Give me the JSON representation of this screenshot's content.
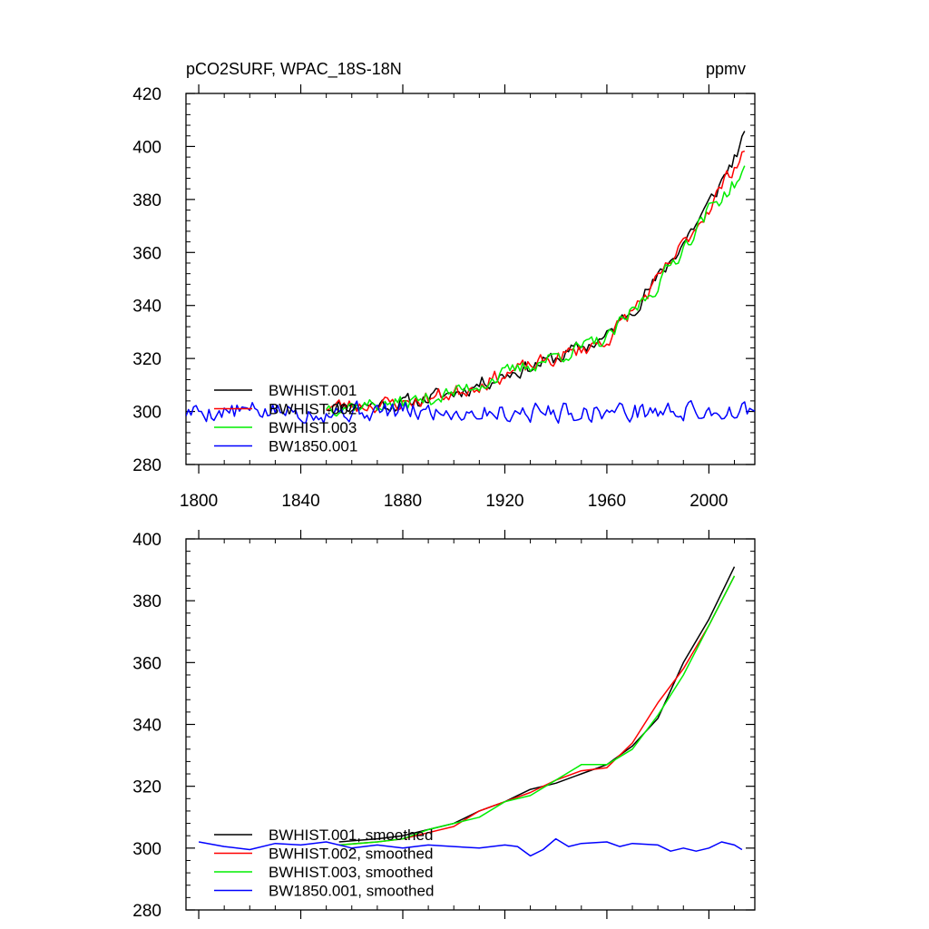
{
  "chart_data": [
    {
      "type": "line",
      "title": "pCO2SURF, WPAC_18S-18N",
      "units": "ppmv",
      "xlabel": "",
      "ylabel": "",
      "xlim": [
        1795,
        2018
      ],
      "ylim": [
        280,
        420
      ],
      "xticks": [
        1800,
        1840,
        1880,
        1920,
        1960,
        2000
      ],
      "yticks": [
        280,
        300,
        320,
        340,
        360,
        380,
        400,
        420
      ],
      "xticklabels": [
        "1800",
        "1840",
        "1880",
        "1920",
        "1960",
        "2000"
      ],
      "yticklabels": [
        "280",
        "300",
        "320",
        "340",
        "360",
        "380",
        "400",
        "420"
      ],
      "legend_position": "bottom-left",
      "series": [
        {
          "name": "BWHIST.001",
          "color": "#000000",
          "kind": "hist",
          "x_start": 1850,
          "x_end": 2014,
          "anchors": [
            [
              1850,
              302
            ],
            [
              1880,
              303
            ],
            [
              1900,
              307
            ],
            [
              1920,
              314
            ],
            [
              1940,
              320
            ],
            [
              1960,
              328
            ],
            [
              1980,
              350
            ],
            [
              2000,
              378
            ],
            [
              2014,
              403
            ]
          ],
          "noise": 2.6,
          "seed": 11
        },
        {
          "name": "BWHIST.002",
          "color": "#ff0000",
          "kind": "hist",
          "x_start": 1850,
          "x_end": 2014,
          "anchors": [
            [
              1850,
              302
            ],
            [
              1880,
              303
            ],
            [
              1900,
              307
            ],
            [
              1920,
              314
            ],
            [
              1940,
              320
            ],
            [
              1960,
              327
            ],
            [
              1980,
              349
            ],
            [
              2000,
              377
            ],
            [
              2014,
              399
            ]
          ],
          "noise": 2.6,
          "seed": 23
        },
        {
          "name": "BWHIST.003",
          "color": "#00ee00",
          "kind": "hist",
          "x_start": 1850,
          "x_end": 2014,
          "anchors": [
            [
              1850,
              302
            ],
            [
              1880,
              303
            ],
            [
              1900,
              307
            ],
            [
              1920,
              314
            ],
            [
              1940,
              321
            ],
            [
              1960,
              327
            ],
            [
              1980,
              348
            ],
            [
              2000,
              376
            ],
            [
              2014,
              390
            ]
          ],
          "noise": 2.6,
          "seed": 37
        },
        {
          "name": "BW1850.001",
          "color": "#0000ff",
          "kind": "control",
          "x_start": 1795,
          "x_end": 2018,
          "anchors": [
            [
              1795,
              300
            ],
            [
              2018,
              300
            ]
          ],
          "noise": 3.3,
          "seed": 5
        }
      ]
    },
    {
      "type": "line",
      "title": "",
      "xlabel": "",
      "ylabel": "",
      "xlim": [
        1795,
        2018
      ],
      "ylim": [
        280,
        400
      ],
      "xticks": [
        1800,
        1840,
        1880,
        1920,
        1960,
        2000
      ],
      "yticks": [
        280,
        300,
        320,
        340,
        360,
        380,
        400
      ],
      "yticklabels": [
        "280",
        "300",
        "320",
        "340",
        "360",
        "380",
        "400"
      ],
      "legend_position": "bottom-left",
      "series": [
        {
          "name": "BWHIST.001, smoothed",
          "color": "#000000",
          "points": [
            [
              1855,
              302
            ],
            [
              1870,
              303
            ],
            [
              1880,
              304
            ],
            [
              1890,
              306
            ],
            [
              1900,
              308
            ],
            [
              1910,
              312
            ],
            [
              1920,
              315
            ],
            [
              1930,
              319
            ],
            [
              1940,
              321
            ],
            [
              1950,
              324
            ],
            [
              1960,
              327
            ],
            [
              1970,
              333
            ],
            [
              1980,
              342
            ],
            [
              1990,
              360
            ],
            [
              2000,
              374
            ],
            [
              2010,
              391
            ]
          ]
        },
        {
          "name": "BWHIST.002, smoothed",
          "color": "#ff0000",
          "points": [
            [
              1855,
              301
            ],
            [
              1870,
              302
            ],
            [
              1880,
              303
            ],
            [
              1890,
              305
            ],
            [
              1900,
              307
            ],
            [
              1910,
              312
            ],
            [
              1920,
              315
            ],
            [
              1930,
              318
            ],
            [
              1940,
              322
            ],
            [
              1950,
              325
            ],
            [
              1960,
              326
            ],
            [
              1970,
              334
            ],
            [
              1980,
              347
            ],
            [
              1990,
              358
            ],
            [
              2000,
              372
            ],
            [
              2010,
              388
            ]
          ]
        },
        {
          "name": "BWHIST.003, smoothed",
          "color": "#00ee00",
          "points": [
            [
              1855,
              301
            ],
            [
              1870,
              302
            ],
            [
              1880,
              303
            ],
            [
              1890,
              306
            ],
            [
              1900,
              308
            ],
            [
              1910,
              310
            ],
            [
              1920,
              315
            ],
            [
              1930,
              317
            ],
            [
              1940,
              322
            ],
            [
              1950,
              327
            ],
            [
              1960,
              327
            ],
            [
              1970,
              332
            ],
            [
              1980,
              343
            ],
            [
              1990,
              356
            ],
            [
              2000,
              372
            ],
            [
              2010,
              388
            ]
          ]
        },
        {
          "name": "BW1850.001, smoothed",
          "color": "#0000ff",
          "points": [
            [
              1800,
              302
            ],
            [
              1810,
              300.5
            ],
            [
              1820,
              299.5
            ],
            [
              1830,
              301.5
            ],
            [
              1840,
              301
            ],
            [
              1850,
              302
            ],
            [
              1860,
              300
            ],
            [
              1870,
              301
            ],
            [
              1880,
              300
            ],
            [
              1890,
              301
            ],
            [
              1900,
              300.5
            ],
            [
              1910,
              300
            ],
            [
              1920,
              301
            ],
            [
              1925,
              300.5
            ],
            [
              1930,
              297.5
            ],
            [
              1935,
              299.5
            ],
            [
              1940,
              303
            ],
            [
              1945,
              300.5
            ],
            [
              1950,
              301.5
            ],
            [
              1960,
              302
            ],
            [
              1965,
              300.5
            ],
            [
              1970,
              301.5
            ],
            [
              1980,
              301
            ],
            [
              1985,
              299
            ],
            [
              1990,
              300
            ],
            [
              1995,
              299
            ],
            [
              2000,
              300
            ],
            [
              2005,
              302
            ],
            [
              2010,
              301
            ],
            [
              2013,
              299.5
            ]
          ]
        }
      ]
    }
  ]
}
